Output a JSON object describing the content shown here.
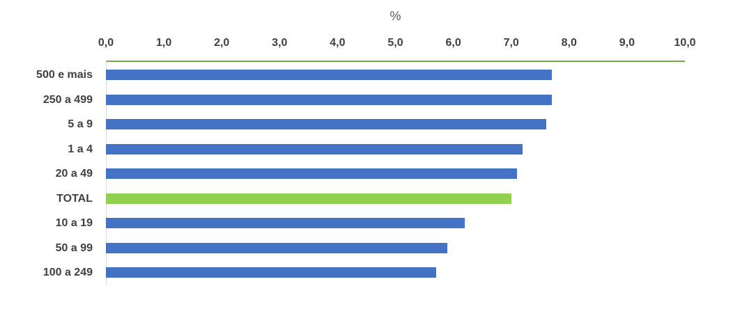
{
  "chart_data": {
    "type": "bar",
    "orientation": "horizontal",
    "title": "%",
    "categories": [
      "500 e mais",
      "250 a 499",
      "5 a 9",
      "1 a 4",
      "20 a 49",
      "TOTAL",
      "10 a 19",
      "50 a 99",
      "100 a 249"
    ],
    "values": [
      7.7,
      7.7,
      7.6,
      7.2,
      7.1,
      7.0,
      6.2,
      5.9,
      5.7
    ],
    "highlight_category": "TOTAL",
    "xlim": [
      0,
      10
    ],
    "xtick_values": [
      0,
      1,
      2,
      3,
      4,
      5,
      6,
      7,
      8,
      9,
      10
    ],
    "xtick_labels": [
      "0,0",
      "1,0",
      "2,0",
      "3,0",
      "4,0",
      "5,0",
      "6,0",
      "7,0",
      "8,0",
      "9,0",
      "10,0"
    ],
    "grid": "off",
    "legend": "none",
    "colors": {
      "bar": "#4472C4",
      "highlight_bar": "#92D050",
      "value_axis_line": "#70AD47",
      "category_axis_line": "#D9D9D9",
      "tick_text": "#404040",
      "category_text": "#404040",
      "title_text": "#595959",
      "background": "#FFFFFF"
    }
  }
}
